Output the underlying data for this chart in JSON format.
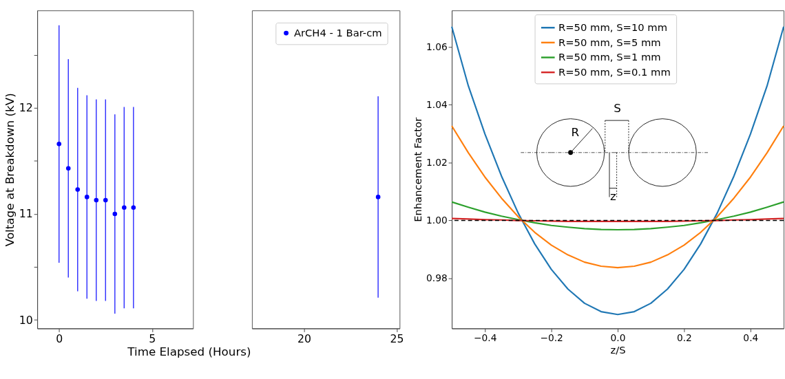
{
  "chart_data": [
    {
      "type": "scatter",
      "ylabel": "Voltage at Breakdown (kV)",
      "xlabel": "Time Elapsed (Hours)",
      "xlim": [
        -1.17,
        7.2
      ],
      "xticks": [
        0,
        5
      ],
      "ylim": [
        9.92,
        12.92
      ],
      "yticks": [
        10,
        {
          "value": 10.5,
          "label": null
        },
        11,
        {
          "value": 11.5,
          "label": null
        },
        12,
        {
          "value": 12.5,
          "label": null
        }
      ],
      "marker": "circle",
      "grid": false,
      "series": [
        {
          "color": "#0000ff",
          "x": [
            0,
            0.5,
            1,
            1.5,
            2,
            2.5,
            3,
            3.5,
            4
          ],
          "values": [
            11.66,
            11.43,
            11.23,
            11.16,
            11.13,
            11.13,
            11.0,
            11.06,
            11.06
          ],
          "errors": [
            1.12,
            1.03,
            0.96,
            0.96,
            0.95,
            0.95,
            0.94,
            0.95,
            0.95
          ]
        }
      ]
    },
    {
      "type": "scatter",
      "xlim": [
        17.19,
        25.16
      ],
      "xticks": [
        20,
        25
      ],
      "ylim": [
        9.92,
        12.92
      ],
      "tick_labels": "x",
      "marker": "circle",
      "grid": false,
      "legend": "top right",
      "series": [
        {
          "name": "ArCH4 - 1 Bar-cm",
          "color": "#0000ff",
          "x": [
            24
          ],
          "values": [
            11.16
          ],
          "errors": [
            0.95
          ]
        }
      ]
    },
    {
      "type": "line",
      "xlabel": "z/S",
      "ylabel": "Enhancement Factor",
      "xlim": [
        -0.5,
        0.5
      ],
      "xticks": [
        -0.4,
        -0.2,
        {
          "value": 0,
          "label": "0.0"
        },
        0.2,
        0.4
      ],
      "ylim": [
        0.9627,
        1.0726
      ],
      "yticks": [
        0.98,
        {
          "value": 1.0,
          "label": "1.00"
        },
        1.02,
        1.04,
        1.06
      ],
      "grid": false,
      "legend": "top",
      "marker": "none",
      "line_style": "solid",
      "x": [
        -0.5,
        -0.45,
        -0.4,
        -0.35,
        -0.3,
        -0.25,
        -0.2,
        -0.15,
        -0.1,
        -0.05,
        0,
        0.05,
        0.1,
        0.15,
        0.2,
        0.25,
        0.3,
        0.35,
        0.4,
        0.45,
        0.5
      ],
      "series": [
        {
          "name": "R=50 mm, S=10 mm",
          "color": "#1f77b4",
          "values": [
            1.067,
            1.0465,
            1.0299,
            1.0153,
            1.0026,
            0.9919,
            0.9831,
            0.9763,
            0.9714,
            0.9685,
            0.9675,
            0.9685,
            0.9714,
            0.9763,
            0.9831,
            0.9919,
            1.0026,
            1.0153,
            1.0299,
            1.0465,
            1.067
          ]
        },
        {
          "name": "R=50 mm, S=5 mm",
          "color": "#ff7f0e",
          "values": [
            1.0327,
            1.0234,
            1.015,
            1.0077,
            1.0013,
            0.9959,
            0.9915,
            0.9881,
            0.9856,
            0.9842,
            0.9837,
            0.9842,
            0.9856,
            0.9881,
            0.9915,
            0.9959,
            1.0013,
            1.0077,
            1.015,
            1.0234,
            1.0327
          ]
        },
        {
          "name": "R=50 mm, S=1 mm",
          "color": "#2ca02c",
          "values": [
            1.0064,
            1.0046,
            1.0029,
            1.0015,
            1.0003,
            0.9992,
            0.9983,
            0.9977,
            0.9972,
            0.9969,
            0.9968,
            0.9969,
            0.9972,
            0.9977,
            0.9983,
            0.9992,
            1.0003,
            1.0015,
            1.0029,
            1.0046,
            1.0064
          ]
        },
        {
          "name": "R=50 mm, S=0.1 mm",
          "color": "#d62728",
          "values": [
            1.0007,
            1.0005,
            1.0003,
            1.0002,
            1.0,
            0.9999,
            0.9998,
            0.9997,
            0.9997,
            0.9997,
            0.9997,
            0.9997,
            0.9997,
            0.9997,
            0.9998,
            0.9999,
            1.0,
            1.0002,
            1.0003,
            1.0005,
            1.0007
          ]
        }
      ],
      "ref_lines": [
        {
          "axis": "y",
          "value": 1.0,
          "color": "#000000",
          "line_style": "dashed"
        }
      ],
      "annotations": [
        "S",
        "R",
        "z"
      ]
    }
  ]
}
